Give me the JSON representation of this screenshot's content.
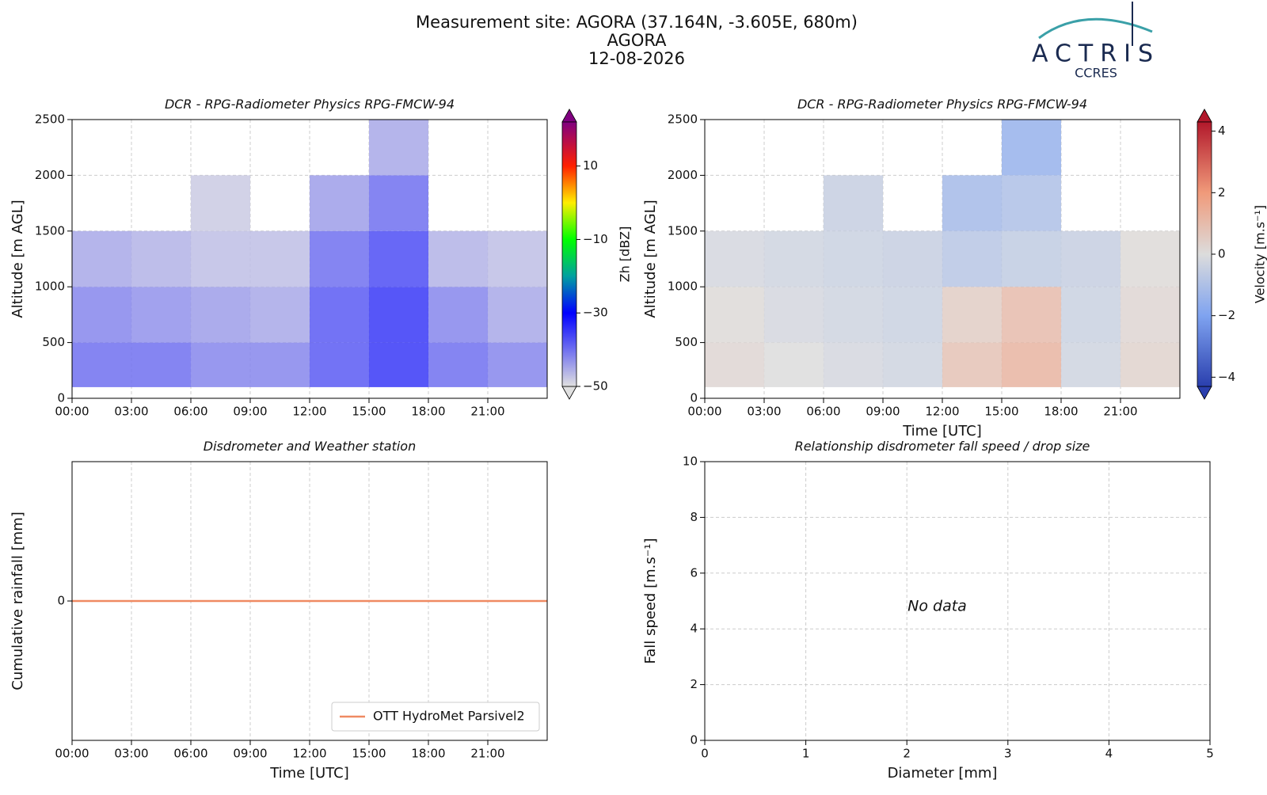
{
  "header": {
    "title_lines": [
      "Measurement site: AGORA (37.164N, -3.605E, 680m)",
      "AGORA",
      "12-08-2026"
    ],
    "logo": {
      "name": "ACTRIS",
      "subtitle": "CCRES"
    }
  },
  "chart_data": [
    {
      "type": "heatmap",
      "title": "DCR - RPG-Radiometer Physics RPG-FMCW-94",
      "y_label": "Altitude [m AGL]",
      "x_edges": [
        0,
        3,
        6,
        9,
        12,
        15,
        18,
        21,
        24
      ],
      "y_edges": [
        100,
        500,
        1000,
        1500,
        2000,
        2500
      ],
      "z": [
        [
          -40,
          -40,
          -42,
          -42,
          -38,
          -35,
          -40,
          -42
        ],
        [
          -42,
          -43,
          -44,
          -45,
          -38,
          -35,
          -42,
          -45
        ],
        [
          -45,
          -46,
          -47,
          -47,
          -40,
          -37,
          -46,
          -47
        ],
        [
          null,
          null,
          -48,
          null,
          -44,
          -40,
          null,
          null
        ],
        [
          null,
          null,
          null,
          null,
          null,
          -45,
          null,
          null
        ]
      ],
      "xlim": [
        0,
        24
      ],
      "ylim": [
        0,
        2500
      ],
      "xticks": [
        {
          "value": 0,
          "label": "00:00"
        },
        {
          "value": 3,
          "label": "03:00"
        },
        {
          "value": 6,
          "label": "06:00"
        },
        {
          "value": 9,
          "label": "09:00"
        },
        {
          "value": 12,
          "label": "12:00"
        },
        {
          "value": 15,
          "label": "15:00"
        },
        {
          "value": 18,
          "label": "18:00"
        },
        {
          "value": 21,
          "label": "21:00"
        }
      ],
      "yticks": [
        0,
        500,
        1000,
        1500,
        2000,
        2500
      ],
      "grid": true,
      "colorbar": {
        "label": "Zh [dBZ]",
        "clim": [
          -50,
          22
        ],
        "ticks": [
          {
            "value": -50,
            "label": "−50"
          },
          {
            "value": -30,
            "label": "−30"
          },
          {
            "value": -10,
            "label": "−10"
          },
          10
        ],
        "colormap": [
          {
            "value": -50,
            "color": "#e0e0e0"
          },
          {
            "value": -30,
            "color": "#0000ff"
          },
          {
            "value": -20,
            "color": "#00a0a0"
          },
          {
            "value": -10,
            "color": "#00ff00"
          },
          {
            "value": 0,
            "color": "#ffee00"
          },
          {
            "value": 10,
            "color": "#ff2000"
          },
          {
            "value": 22,
            "color": "#800080"
          }
        ]
      }
    },
    {
      "type": "heatmap",
      "title": "DCR - RPG-Radiometer Physics RPG-FMCW-94",
      "y_label": "Altitude [m AGL]",
      "x_label": "Time [UTC]",
      "x_edges": [
        0,
        3,
        6,
        9,
        12,
        15,
        18,
        21,
        24
      ],
      "y_edges": [
        100,
        500,
        1000,
        1500,
        2000,
        2500
      ],
      "z": [
        [
          0.2,
          0,
          -0.2,
          -0.3,
          0.8,
          1.2,
          -0.3,
          0.3
        ],
        [
          0.1,
          -0.2,
          -0.3,
          -0.4,
          0.5,
          1.0,
          -0.4,
          0.2
        ],
        [
          -0.2,
          -0.3,
          -0.4,
          -0.5,
          -0.8,
          -0.6,
          -0.5,
          0.1
        ],
        [
          null,
          null,
          -0.5,
          null,
          -1.2,
          -1.0,
          null,
          null
        ],
        [
          null,
          null,
          null,
          null,
          null,
          -1.5,
          null,
          null
        ]
      ],
      "xlim": [
        0,
        24
      ],
      "ylim": [
        0,
        2500
      ],
      "xticks": [
        {
          "value": 0,
          "label": "00:00"
        },
        {
          "value": 3,
          "label": "03:00"
        },
        {
          "value": 6,
          "label": "06:00"
        },
        {
          "value": 9,
          "label": "09:00"
        },
        {
          "value": 12,
          "label": "12:00"
        },
        {
          "value": 15,
          "label": "15:00"
        },
        {
          "value": 18,
          "label": "18:00"
        },
        {
          "value": 21,
          "label": "21:00"
        }
      ],
      "yticks": [
        0,
        500,
        1000,
        1500,
        2000,
        2500
      ],
      "grid": true,
      "colorbar": {
        "label": "Velocity [m.s⁻¹]",
        "clim": [
          -4.3,
          4.3
        ],
        "ticks": [
          {
            "value": -4,
            "label": "−4"
          },
          {
            "value": -2,
            "label": "−2"
          },
          0,
          2,
          4
        ],
        "colormap": [
          {
            "value": -4.3,
            "color": "#2a3fae"
          },
          {
            "value": -2,
            "color": "#7fa3f0"
          },
          {
            "value": 0,
            "color": "#dcdcdc"
          },
          {
            "value": 2,
            "color": "#f09a7a"
          },
          {
            "value": 4.3,
            "color": "#b2182b"
          }
        ]
      }
    },
    {
      "type": "line",
      "title": "Disdrometer and Weather station",
      "y_label": "Cumulative rainfall [mm]",
      "x_label": "Time [UTC]",
      "x": [
        0,
        24
      ],
      "series": [
        {
          "name": "OTT HydroMet Parsivel2",
          "color": "#ef8a62",
          "values": [
            0,
            0
          ]
        }
      ],
      "xlim": [
        0,
        24
      ],
      "ylim": [
        -0.06,
        0.06
      ],
      "xticks": [
        {
          "value": 0,
          "label": "00:00"
        },
        {
          "value": 3,
          "label": "03:00"
        },
        {
          "value": 6,
          "label": "06:00"
        },
        {
          "value": 9,
          "label": "09:00"
        },
        {
          "value": 12,
          "label": "12:00"
        },
        {
          "value": 15,
          "label": "15:00"
        },
        {
          "value": 18,
          "label": "18:00"
        },
        {
          "value": 21,
          "label": "21:00"
        }
      ],
      "yticks": [
        0
      ],
      "grid": true,
      "legend": "lower right"
    },
    {
      "type": "scatter",
      "title": "Relationship disdrometer fall speed / drop size",
      "y_label": "Fall speed [m.s⁻¹]",
      "x_label": "Diameter [mm]",
      "x": [],
      "values": [],
      "annotation": "No data",
      "xlim": [
        0,
        5
      ],
      "ylim": [
        0,
        10
      ],
      "xticks": [
        0,
        1,
        2,
        3,
        4,
        5
      ],
      "yticks": [
        0,
        2,
        4,
        6,
        8,
        10
      ],
      "grid": true
    }
  ]
}
